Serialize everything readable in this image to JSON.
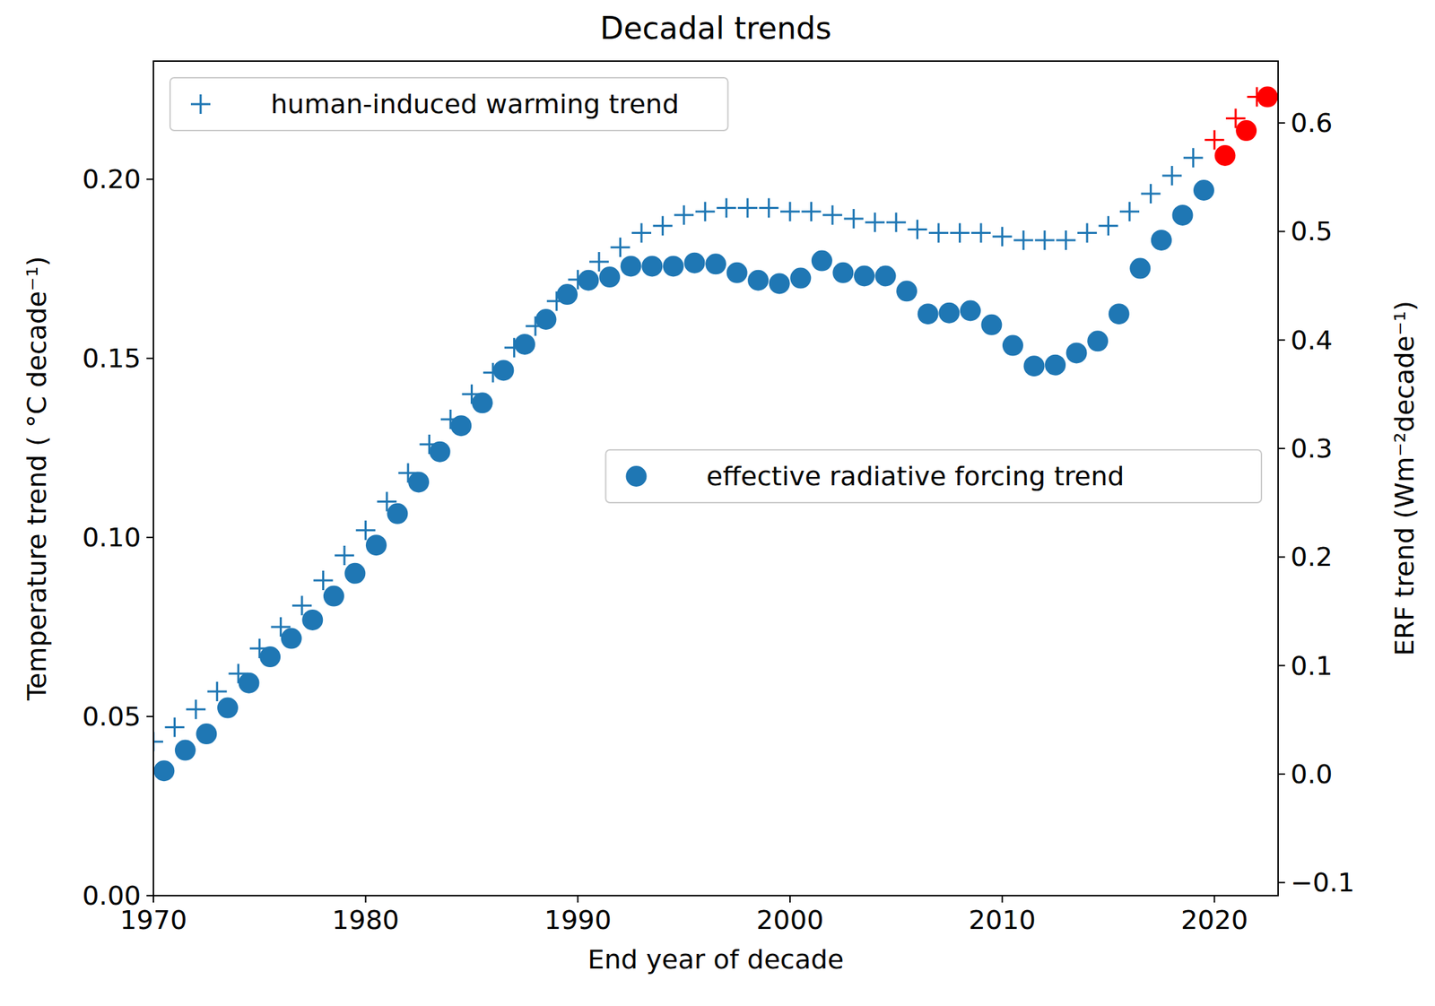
{
  "chart_data": {
    "type": "scatter",
    "title": "Decadal trends",
    "x_label": "End year of decade",
    "y_label": "Temperature trend ( °C decade⁻¹)",
    "y2_label": "ERF trend (Wm⁻²decade⁻¹)",
    "xlim": [
      1970,
      2023
    ],
    "xticks": [
      1970,
      1980,
      1990,
      2000,
      2010,
      2020
    ],
    "ylim": [
      0,
      0.233
    ],
    "yticks": [
      {
        "value": 0,
        "label": "0.00"
      },
      0.05,
      {
        "value": 0.1,
        "label": "0.10"
      },
      0.15,
      {
        "value": 0.2,
        "label": "0.20"
      }
    ],
    "y2lim": [
      -0.112,
      0.657
    ],
    "y2ticks": [
      {
        "value": -0.1,
        "label": "−0.1"
      },
      {
        "value": 0,
        "label": "0.0"
      },
      0.1,
      0.2,
      0.3,
      0.4,
      0.5,
      0.6
    ],
    "legend": "upper left",
    "grid": false,
    "series": [
      {
        "name": "human-induced warming trend",
        "marker": "plus",
        "color": "#1f77b4",
        "colors": [
          "#1f77b4",
          "#1f77b4",
          "#1f77b4",
          "#1f77b4",
          "#1f77b4",
          "#1f77b4",
          "#1f77b4",
          "#1f77b4",
          "#1f77b4",
          "#1f77b4",
          "#1f77b4",
          "#1f77b4",
          "#1f77b4",
          "#1f77b4",
          "#1f77b4",
          "#1f77b4",
          "#1f77b4",
          "#1f77b4",
          "#1f77b4",
          "#1f77b4",
          "#1f77b4",
          "#1f77b4",
          "#1f77b4",
          "#1f77b4",
          "#1f77b4",
          "#1f77b4",
          "#1f77b4",
          "#1f77b4",
          "#1f77b4",
          "#1f77b4",
          "#1f77b4",
          "#1f77b4",
          "#1f77b4",
          "#1f77b4",
          "#1f77b4",
          "#1f77b4",
          "#1f77b4",
          "#1f77b4",
          "#1f77b4",
          "#1f77b4",
          "#1f77b4",
          "#1f77b4",
          "#1f77b4",
          "#1f77b4",
          "#1f77b4",
          "#1f77b4",
          "#1f77b4",
          "#1f77b4",
          "#1f77b4",
          "#1f77b4",
          "#ff0000",
          "#ff0000",
          "#ff0000"
        ],
        "x": [
          1970,
          1971,
          1972,
          1973,
          1974,
          1975,
          1976,
          1977,
          1978,
          1979,
          1980,
          1981,
          1982,
          1983,
          1984,
          1985,
          1986,
          1987,
          1988,
          1989,
          1990,
          1991,
          1992,
          1993,
          1994,
          1995,
          1996,
          1997,
          1998,
          1999,
          2000,
          2001,
          2002,
          2003,
          2004,
          2005,
          2006,
          2007,
          2008,
          2009,
          2010,
          2011,
          2012,
          2013,
          2014,
          2015,
          2016,
          2017,
          2018,
          2019,
          2020,
          2021,
          2022
        ],
        "values": [
          0.043,
          0.047,
          0.052,
          0.057,
          0.062,
          0.069,
          0.075,
          0.081,
          0.088,
          0.095,
          0.102,
          0.11,
          0.118,
          0.126,
          0.133,
          0.14,
          0.146,
          0.153,
          0.159,
          0.166,
          0.172,
          0.177,
          0.181,
          0.185,
          0.187,
          0.19,
          0.191,
          0.192,
          0.192,
          0.192,
          0.191,
          0.191,
          0.19,
          0.189,
          0.188,
          0.188,
          0.186,
          0.185,
          0.185,
          0.185,
          0.184,
          0.183,
          0.183,
          0.183,
          0.185,
          0.187,
          0.191,
          0.196,
          0.201,
          0.206,
          0.211,
          0.217,
          0.223
        ]
      },
      {
        "name": "effective radiative forcing trend",
        "marker": "circle",
        "axis": "y2",
        "color": "#1f77b4",
        "colors": [
          "#1f77b4",
          "#1f77b4",
          "#1f77b4",
          "#1f77b4",
          "#1f77b4",
          "#1f77b4",
          "#1f77b4",
          "#1f77b4",
          "#1f77b4",
          "#1f77b4",
          "#1f77b4",
          "#1f77b4",
          "#1f77b4",
          "#1f77b4",
          "#1f77b4",
          "#1f77b4",
          "#1f77b4",
          "#1f77b4",
          "#1f77b4",
          "#1f77b4",
          "#1f77b4",
          "#1f77b4",
          "#1f77b4",
          "#1f77b4",
          "#1f77b4",
          "#1f77b4",
          "#1f77b4",
          "#1f77b4",
          "#1f77b4",
          "#1f77b4",
          "#1f77b4",
          "#1f77b4",
          "#1f77b4",
          "#1f77b4",
          "#1f77b4",
          "#1f77b4",
          "#1f77b4",
          "#1f77b4",
          "#1f77b4",
          "#1f77b4",
          "#1f77b4",
          "#1f77b4",
          "#1f77b4",
          "#1f77b4",
          "#1f77b4",
          "#1f77b4",
          "#1f77b4",
          "#1f77b4",
          "#1f77b4",
          "#1f77b4",
          "#ff0000",
          "#ff0000",
          "#ff0000"
        ],
        "x": [
          1970.5,
          1971.5,
          1972.5,
          1973.5,
          1974.5,
          1975.5,
          1976.5,
          1977.5,
          1978.5,
          1979.5,
          1980.5,
          1981.5,
          1982.5,
          1983.5,
          1984.5,
          1985.5,
          1986.5,
          1987.5,
          1988.5,
          1989.5,
          1990.5,
          1991.5,
          1992.5,
          1993.5,
          1994.5,
          1995.5,
          1996.5,
          1997.5,
          1998.5,
          1999.5,
          2000.5,
          2001.5,
          2002.5,
          2003.5,
          2004.5,
          2005.5,
          2006.5,
          2007.5,
          2008.5,
          2009.5,
          2010.5,
          2011.5,
          2012.5,
          2013.5,
          2014.5,
          2015.5,
          2016.5,
          2017.5,
          2018.5,
          2019.5,
          2020.5,
          2021.5,
          2022.5
        ],
        "values": [
          0.003,
          0.022,
          0.037,
          0.061,
          0.084,
          0.108,
          0.125,
          0.142,
          0.164,
          0.185,
          0.211,
          0.24,
          0.269,
          0.297,
          0.321,
          0.342,
          0.372,
          0.396,
          0.419,
          0.442,
          0.455,
          0.458,
          0.468,
          0.468,
          0.468,
          0.471,
          0.47,
          0.462,
          0.455,
          0.452,
          0.457,
          0.473,
          0.462,
          0.459,
          0.459,
          0.445,
          0.424,
          0.425,
          0.427,
          0.414,
          0.395,
          0.376,
          0.377,
          0.388,
          0.399,
          0.424,
          0.466,
          0.492,
          0.515,
          0.538,
          0.57,
          0.593,
          0.624
        ]
      }
    ]
  }
}
